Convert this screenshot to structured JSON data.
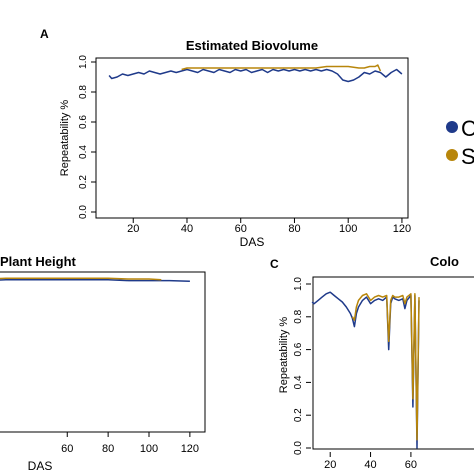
{
  "panels": {
    "a": {
      "letter": "A"
    },
    "b": {
      "letter": ""
    },
    "c": {
      "letter": "C"
    }
  },
  "legend": {
    "entries": [
      {
        "label": "C",
        "color": "#1f3a8a"
      },
      {
        "label": "S",
        "color": "#b8860b"
      }
    ]
  },
  "chart_data": [
    {
      "type": "line",
      "title": "Estimated Biovolume",
      "xlabel": "DAS",
      "ylabel": "Repeatability %",
      "xlim": [
        8,
        123
      ],
      "ylim": [
        0,
        1.0
      ],
      "xticks": [
        20,
        40,
        60,
        80,
        100,
        120
      ],
      "yticks": [
        0.0,
        0.2,
        0.4,
        0.6,
        0.8,
        1.0
      ],
      "ytick_labels": [
        "0.0",
        "0.2",
        "0.4",
        "0.6",
        "0.8",
        "1.0"
      ],
      "series": [
        {
          "color": "#1f3a8a",
          "x": [
            11,
            12,
            14,
            16,
            18,
            20,
            22,
            24,
            26,
            28,
            30,
            32,
            34,
            36,
            38,
            40,
            42,
            44,
            46,
            48,
            50,
            52,
            54,
            56,
            58,
            60,
            62,
            64,
            66,
            68,
            70,
            72,
            74,
            76,
            78,
            80,
            82,
            84,
            86,
            88,
            90,
            92,
            94,
            96,
            98,
            100,
            102,
            104,
            106,
            108,
            110,
            112,
            114,
            116,
            118,
            120
          ],
          "y": [
            0.91,
            0.89,
            0.9,
            0.92,
            0.91,
            0.92,
            0.93,
            0.92,
            0.94,
            0.93,
            0.92,
            0.93,
            0.94,
            0.93,
            0.94,
            0.95,
            0.94,
            0.93,
            0.95,
            0.94,
            0.93,
            0.95,
            0.94,
            0.93,
            0.95,
            0.94,
            0.95,
            0.93,
            0.94,
            0.95,
            0.93,
            0.95,
            0.94,
            0.95,
            0.94,
            0.95,
            0.94,
            0.95,
            0.94,
            0.95,
            0.94,
            0.95,
            0.94,
            0.92,
            0.88,
            0.87,
            0.88,
            0.9,
            0.93,
            0.92,
            0.94,
            0.93,
            0.9,
            0.93,
            0.95,
            0.92
          ]
        },
        {
          "color": "#b8860b",
          "x": [
            38,
            40,
            44,
            48,
            52,
            56,
            60,
            64,
            68,
            72,
            76,
            80,
            84,
            88,
            92,
            96,
            100,
            104,
            106,
            108,
            110,
            111,
            112
          ],
          "y": [
            0.95,
            0.96,
            0.96,
            0.96,
            0.96,
            0.96,
            0.96,
            0.96,
            0.96,
            0.96,
            0.96,
            0.96,
            0.96,
            0.96,
            0.97,
            0.97,
            0.97,
            0.96,
            0.96,
            0.97,
            0.97,
            0.98,
            0.94
          ]
        }
      ]
    },
    {
      "type": "line",
      "title": "Plant Height",
      "xlabel": "DAS",
      "ylabel": "",
      "xlim": [
        8,
        123
      ],
      "ylim": [
        0,
        1.0
      ],
      "xticks": [
        60,
        80,
        100,
        120
      ],
      "yticks": [],
      "series": [
        {
          "color": "#1f3a8a",
          "x": [
            0,
            10,
            20,
            30,
            40,
            50,
            60,
            70,
            80,
            90,
            100,
            110,
            120
          ],
          "y": [
            0.95,
            0.965,
            0.97,
            0.975,
            0.975,
            0.975,
            0.975,
            0.975,
            0.975,
            0.97,
            0.97,
            0.97,
            0.965
          ]
        },
        {
          "color": "#b8860b",
          "x": [
            0,
            10,
            20,
            30,
            40,
            50,
            60,
            70,
            80,
            90,
            100,
            106
          ],
          "y": [
            0.965,
            0.975,
            0.98,
            0.985,
            0.985,
            0.985,
            0.985,
            0.985,
            0.985,
            0.98,
            0.98,
            0.975
          ]
        }
      ]
    },
    {
      "type": "line",
      "title": "Colo",
      "xlabel": "",
      "ylabel": "Repeatability %",
      "xlim": [
        8,
        123
      ],
      "ylim": [
        0,
        1.0
      ],
      "xticks": [
        20,
        40,
        60
      ],
      "yticks": [
        0.0,
        0.2,
        0.4,
        0.6,
        0.8,
        1.0
      ],
      "ytick_labels": [
        "0.0",
        "0.2",
        "0.4",
        "0.6",
        "0.8",
        "1.0"
      ],
      "series": [
        {
          "color": "#1f3a8a",
          "x": [
            11,
            12,
            14,
            16,
            18,
            20,
            22,
            24,
            26,
            28,
            30,
            31,
            32,
            33,
            34,
            36,
            38,
            40,
            42,
            44,
            46,
            48,
            49,
            50,
            51,
            52,
            54,
            56,
            57,
            58,
            60,
            61,
            62,
            63,
            64
          ],
          "y": [
            0.89,
            0.88,
            0.9,
            0.92,
            0.94,
            0.95,
            0.93,
            0.91,
            0.89,
            0.86,
            0.82,
            0.79,
            0.74,
            0.82,
            0.86,
            0.9,
            0.92,
            0.88,
            0.9,
            0.91,
            0.9,
            0.92,
            0.6,
            0.88,
            0.92,
            0.91,
            0.9,
            0.91,
            0.85,
            0.9,
            0.93,
            0.25,
            0.93,
            0.0,
            0.9
          ]
        },
        {
          "color": "#b8860b",
          "x": [
            31,
            32,
            33,
            34,
            36,
            38,
            40,
            42,
            44,
            46,
            48,
            49,
            50,
            51,
            52,
            54,
            56,
            57,
            58,
            60,
            61,
            62,
            63,
            64
          ],
          "y": [
            0.8,
            0.78,
            0.86,
            0.9,
            0.93,
            0.94,
            0.9,
            0.92,
            0.93,
            0.92,
            0.93,
            0.65,
            0.9,
            0.93,
            0.92,
            0.92,
            0.93,
            0.88,
            0.92,
            0.94,
            0.3,
            0.94,
            0.05,
            0.92
          ]
        }
      ]
    }
  ]
}
